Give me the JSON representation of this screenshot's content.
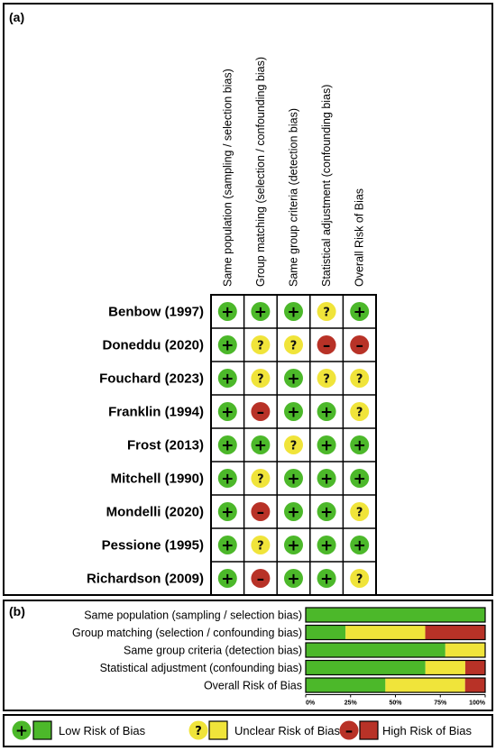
{
  "panel_a_label": "(a)",
  "panel_b_label": "(b)",
  "colors": {
    "low": "#4cb82a",
    "unclear": "#f0e43a",
    "high": "#b83227"
  },
  "symbols": {
    "low": "+",
    "unclear": "?",
    "high": "–"
  },
  "legend": {
    "low": "Low Risk of Bias",
    "unclear": "Unclear Risk of Bias",
    "high": "High Risk of Bias"
  },
  "chart_data": [
    {
      "type": "table",
      "columns": [
        "Same population (sampling / selection bias)",
        "Group matching (selection / confounding bias)",
        "Same group criteria (detection bias)",
        "Statistical adjustment (confounding bias)",
        "Overall Risk of Bias"
      ],
      "rows": [
        {
          "study": "Benbow (1997)",
          "ratings": [
            "low",
            "low",
            "low",
            "unclear",
            "low"
          ]
        },
        {
          "study": "Doneddu (2020)",
          "ratings": [
            "low",
            "unclear",
            "unclear",
            "high",
            "high"
          ]
        },
        {
          "study": "Fouchard (2023)",
          "ratings": [
            "low",
            "unclear",
            "low",
            "unclear",
            "unclear"
          ]
        },
        {
          "study": "Franklin (1994)",
          "ratings": [
            "low",
            "high",
            "low",
            "low",
            "unclear"
          ]
        },
        {
          "study": "Frost (2013)",
          "ratings": [
            "low",
            "low",
            "unclear",
            "low",
            "low"
          ]
        },
        {
          "study": "Mitchell (1990)",
          "ratings": [
            "low",
            "unclear",
            "low",
            "low",
            "low"
          ]
        },
        {
          "study": "Mondelli (2020)",
          "ratings": [
            "low",
            "high",
            "low",
            "low",
            "unclear"
          ]
        },
        {
          "study": "Pessione (1995)",
          "ratings": [
            "low",
            "unclear",
            "low",
            "low",
            "low"
          ]
        },
        {
          "study": "Richardson (2009)",
          "ratings": [
            "low",
            "high",
            "low",
            "low",
            "unclear"
          ]
        }
      ]
    },
    {
      "type": "bar",
      "orientation": "horizontal",
      "stacked": true,
      "categories": [
        "Same population (sampling / selection bias)",
        "Group matching (selection / confounding bias)",
        "Same group criteria (detection bias)",
        "Statistical adjustment (confounding bias)",
        "Overall Risk of Bias"
      ],
      "series": [
        {
          "key": "low",
          "values": [
            100,
            22.2,
            77.8,
            66.7,
            44.4
          ]
        },
        {
          "key": "unclear",
          "values": [
            0,
            44.4,
            22.2,
            22.2,
            44.4
          ]
        },
        {
          "key": "high",
          "values": [
            0,
            33.3,
            0,
            11.1,
            11.1
          ]
        }
      ],
      "xticks": [
        "0%",
        "25%",
        "50%",
        "75%",
        "100%"
      ],
      "xlim": [
        0,
        100
      ]
    }
  ]
}
